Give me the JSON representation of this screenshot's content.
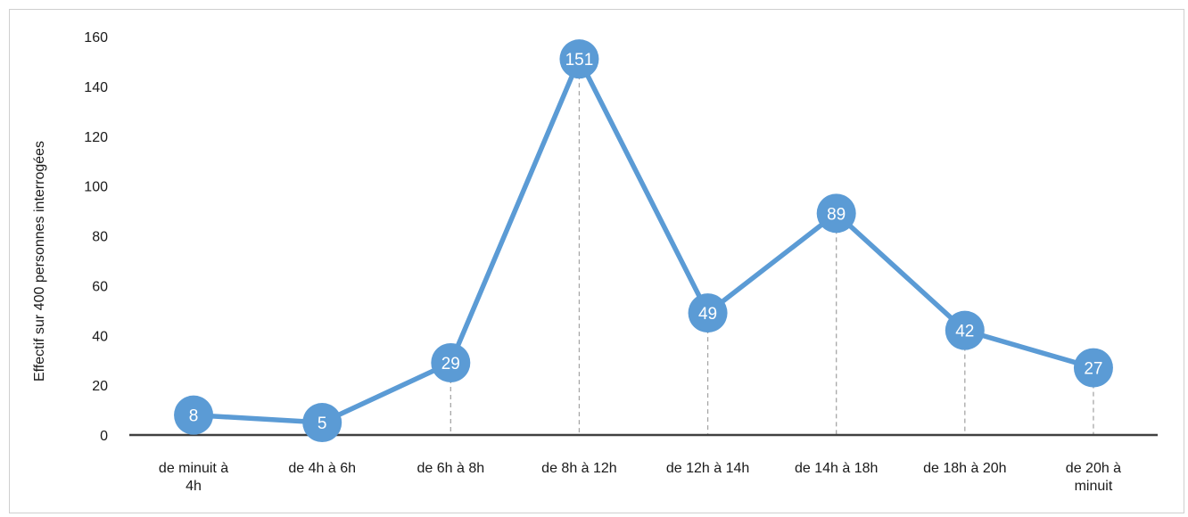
{
  "chart_data": {
    "type": "line",
    "title": "",
    "xlabel": "",
    "ylabel": "Effectif sur 400 personnes interrogées",
    "categories": [
      "de minuit à 4h",
      "de 4h à 6h",
      "de 6h à 8h",
      "de 8h à 12h",
      "de 12h à 14h",
      "de 14h à 18h",
      "de 18h à 20h",
      "de 20h à minuit"
    ],
    "series": [
      {
        "values": [
          8,
          5,
          29,
          151,
          49,
          89,
          42,
          27
        ]
      }
    ],
    "data_labels": [
      "8",
      "5",
      "29",
      "151",
      "49",
      "89",
      "42",
      "27"
    ],
    "ylim": [
      0,
      160
    ],
    "yticks": [
      0,
      20,
      40,
      60,
      80,
      100,
      120,
      140,
      160
    ],
    "ytick_labels": [
      "0",
      "20",
      "40",
      "60",
      "80",
      "100",
      "120",
      "140",
      "160"
    ],
    "grid": false,
    "drop_lines": true,
    "colors": {
      "line": "#5B9BD5",
      "marker": "#5B9BD5",
      "axis": "#404040",
      "drop_line": "#a6a6a6"
    }
  }
}
